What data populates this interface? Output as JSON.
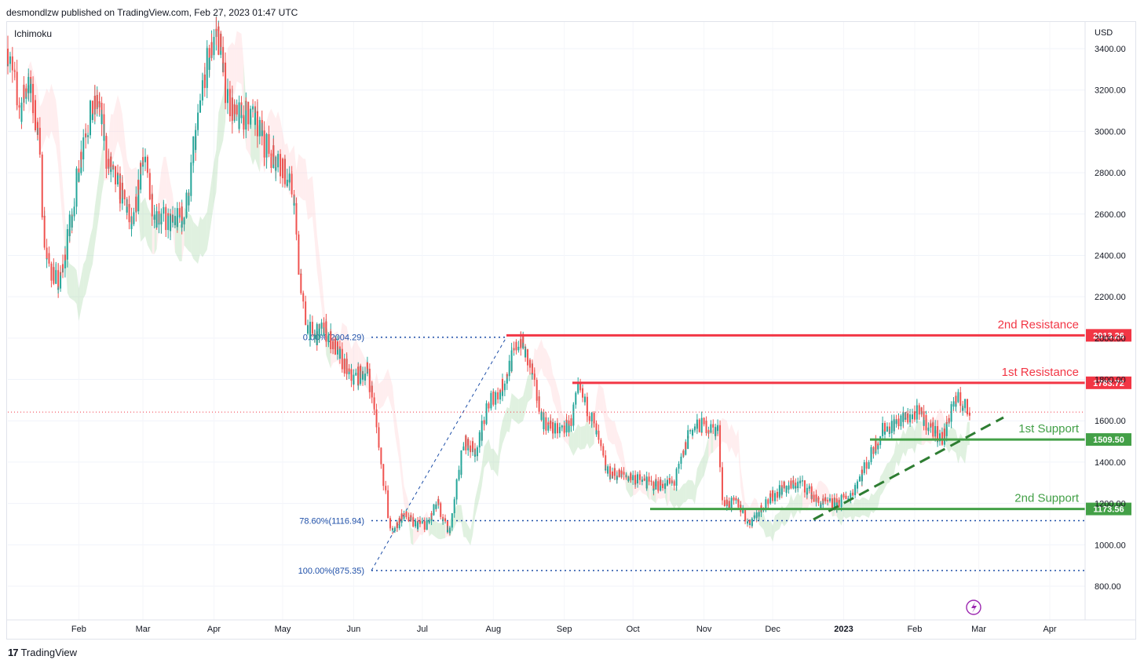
{
  "header": {
    "publisher": "desmondlzw published on TradingView.com, Feb 27, 2023 01:47 UTC"
  },
  "indicator": {
    "name": "Ichimoku"
  },
  "footer": {
    "brand": "TradingView"
  },
  "chart_data": {
    "type": "candlestick",
    "currency": "USD",
    "y_ticks": [
      3400,
      3200,
      3000,
      2800,
      2600,
      2400,
      2200,
      2000,
      1800,
      1600,
      1400,
      1200,
      1000,
      800
    ],
    "y_ticks_labels": [
      "3400.00",
      "3200.00",
      "3000.00",
      "2800.00",
      "2600.00",
      "2400.00",
      "2200.00",
      "2000.00",
      "1800.00",
      "1600.00",
      "1400.00",
      "1200.00",
      "1000.00",
      "800.00"
    ],
    "x_ticks": [
      "Feb",
      "Mar",
      "Apr",
      "May",
      "Jun",
      "Jul",
      "Aug",
      "Sep",
      "Oct",
      "Nov",
      "Dec",
      "2023",
      "Feb",
      "Mar",
      "Apr"
    ],
    "levels": [
      {
        "name": "2nd Resistance",
        "value": 2013.26,
        "label": "2013.26",
        "color": "#f23645"
      },
      {
        "name": "1st Resistance",
        "value": 1783.72,
        "label": "1783.72",
        "color": "#f23645"
      },
      {
        "name": "1st Support",
        "value": 1509.5,
        "label": "1509.50",
        "color": "#43a047"
      },
      {
        "name": "2nd Support",
        "value": 1173.56,
        "label": "1173.56",
        "color": "#43a047"
      }
    ],
    "fibonacci": [
      {
        "label": "0.00%(2004.29)",
        "value": 2004.29
      },
      {
        "label": "78.60%(1116.94)",
        "value": 1116.94
      },
      {
        "label": "100.00%(875.35)",
        "value": 875.35
      }
    ],
    "current_price": 1642,
    "price_path": [
      [
        "2022-01-01",
        3400
      ],
      [
        "2022-01-07",
        3100
      ],
      [
        "2022-01-10",
        3250
      ],
      [
        "2022-01-15",
        3000
      ],
      [
        "2022-01-18",
        2400
      ],
      [
        "2022-01-24",
        2250
      ],
      [
        "2022-01-28",
        2500
      ],
      [
        "2022-02-04",
        3000
      ],
      [
        "2022-02-10",
        3150
      ],
      [
        "2022-02-14",
        2850
      ],
      [
        "2022-02-22",
        2650
      ],
      [
        "2022-02-25",
        2500
      ],
      [
        "2022-03-01",
        2900
      ],
      [
        "2022-03-07",
        2600
      ],
      [
        "2022-03-14",
        2550
      ],
      [
        "2022-03-20",
        2600
      ],
      [
        "2022-03-29",
        3300
      ],
      [
        "2022-04-03",
        3500
      ],
      [
        "2022-04-07",
        3200
      ],
      [
        "2022-04-11",
        3050
      ],
      [
        "2022-04-17",
        3100
      ],
      [
        "2022-04-26",
        2900
      ],
      [
        "2022-05-01",
        2850
      ],
      [
        "2022-05-06",
        2700
      ],
      [
        "2022-05-11",
        2100
      ],
      [
        "2022-05-15",
        2000
      ],
      [
        "2022-05-20",
        2050
      ],
      [
        "2022-05-27",
        1900
      ],
      [
        "2022-06-01",
        1800
      ],
      [
        "2022-06-08",
        1850
      ],
      [
        "2022-06-13",
        1450
      ],
      [
        "2022-06-18",
        1050
      ],
      [
        "2022-06-23",
        1150
      ],
      [
        "2022-06-28",
        1100
      ],
      [
        "2022-07-04",
        1100
      ],
      [
        "2022-07-08",
        1200
      ],
      [
        "2022-07-13",
        1050
      ],
      [
        "2022-07-20",
        1500
      ],
      [
        "2022-07-25",
        1450
      ],
      [
        "2022-07-31",
        1700
      ],
      [
        "2022-08-05",
        1750
      ],
      [
        "2022-08-13",
        2000
      ],
      [
        "2022-08-18",
        1850
      ],
      [
        "2022-08-23",
        1600
      ],
      [
        "2022-08-29",
        1550
      ],
      [
        "2022-09-04",
        1580
      ],
      [
        "2022-09-08",
        1750
      ],
      [
        "2022-09-14",
        1600
      ],
      [
        "2022-09-20",
        1350
      ],
      [
        "2022-09-30",
        1330
      ],
      [
        "2022-10-10",
        1290
      ],
      [
        "2022-10-20",
        1300
      ],
      [
        "2022-10-26",
        1550
      ],
      [
        "2022-11-01",
        1580
      ],
      [
        "2022-11-08",
        1550
      ],
      [
        "2022-11-10",
        1200
      ],
      [
        "2022-11-17",
        1200
      ],
      [
        "2022-11-21",
        1100
      ],
      [
        "2022-11-28",
        1200
      ],
      [
        "2022-12-05",
        1270
      ],
      [
        "2022-12-14",
        1300
      ],
      [
        "2022-12-22",
        1200
      ],
      [
        "2022-12-30",
        1200
      ],
      [
        "2023-01-05",
        1250
      ],
      [
        "2023-01-12",
        1400
      ],
      [
        "2023-01-18",
        1550
      ],
      [
        "2023-01-26",
        1600
      ],
      [
        "2023-02-03",
        1640
      ],
      [
        "2023-02-10",
        1550
      ],
      [
        "2023-02-14",
        1510
      ],
      [
        "2023-02-18",
        1680
      ],
      [
        "2023-02-21",
        1700
      ],
      [
        "2023-02-26",
        1640
      ]
    ]
  }
}
